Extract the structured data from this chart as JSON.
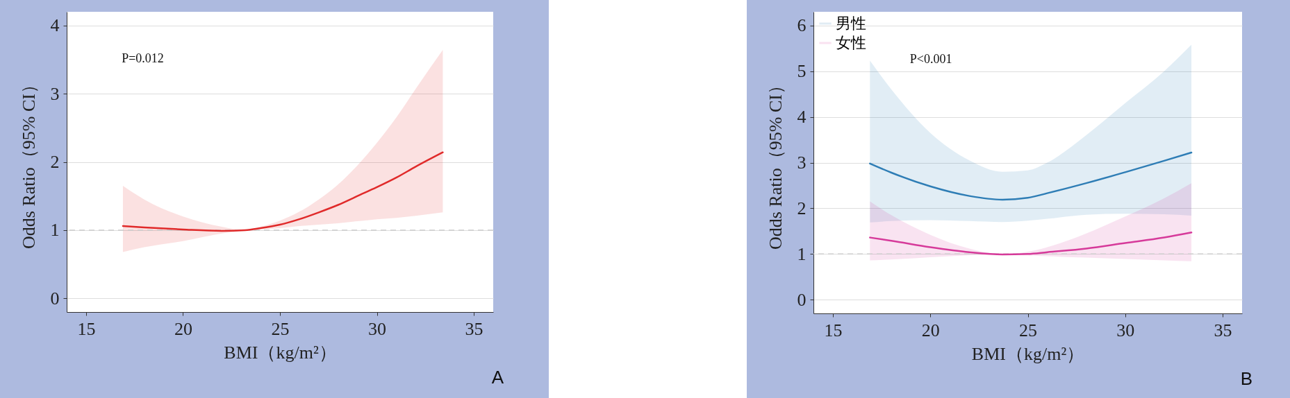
{
  "chart_data": [
    {
      "type": "line",
      "xlabel": "BMI（kg/m²）",
      "ylabel": "Odds Ratio（95% CI）",
      "xlim": [
        14,
        36
      ],
      "ylim": [
        -0.2,
        4.2
      ],
      "xticks": [
        15,
        20,
        25,
        30,
        35
      ],
      "yticks": [
        0,
        1,
        2,
        3,
        4
      ],
      "grid": "y",
      "legend": false,
      "series": [
        {
          "color": "#e02a2a",
          "x": [
            16.9,
            18,
            20,
            22,
            23.2,
            24,
            25,
            26,
            27,
            28,
            29,
            30,
            31,
            32,
            33.4
          ],
          "values": [
            1.06,
            1.04,
            1.01,
            0.99,
            1.0,
            1.03,
            1.08,
            1.16,
            1.26,
            1.37,
            1.5,
            1.63,
            1.77,
            1.93,
            2.14
          ],
          "lower": [
            0.68,
            0.75,
            0.84,
            0.95,
            1.0,
            1.01,
            1.03,
            1.06,
            1.08,
            1.1,
            1.13,
            1.16,
            1.18,
            1.21,
            1.26
          ],
          "upper": [
            1.65,
            1.45,
            1.2,
            1.05,
            1.0,
            1.05,
            1.14,
            1.27,
            1.45,
            1.67,
            1.95,
            2.28,
            2.65,
            3.07,
            3.64
          ]
        }
      ],
      "ref_lines": [
        {
          "axis": "y",
          "value": 1,
          "color": "#cccccc",
          "line_style": "dashed"
        }
      ],
      "annotations": [
        "P=0.012",
        "A"
      ]
    },
    {
      "type": "line",
      "xlabel": "BMI（kg/m²）",
      "ylabel": "Odds Ratio（95% CI）",
      "xlim": [
        14,
        36
      ],
      "ylim": [
        -0.3,
        6.3
      ],
      "xticks": [
        15,
        20,
        25,
        30,
        35
      ],
      "yticks": [
        0,
        1,
        2,
        3,
        4,
        5,
        6
      ],
      "grid": "y",
      "legend": "top left",
      "series": [
        {
          "name": "男性",
          "color": "#2e7db5",
          "x": [
            16.9,
            18,
            20,
            22,
            23.7,
            25,
            26,
            28,
            30,
            32,
            33.4
          ],
          "values": [
            2.98,
            2.78,
            2.48,
            2.27,
            2.19,
            2.23,
            2.33,
            2.55,
            2.79,
            3.04,
            3.22
          ],
          "lower": [
            1.69,
            1.72,
            1.74,
            1.72,
            1.7,
            1.73,
            1.77,
            1.86,
            1.88,
            1.87,
            1.84
          ],
          "upper": [
            5.23,
            4.6,
            3.65,
            3.05,
            2.8,
            2.83,
            3.0,
            3.6,
            4.3,
            5.0,
            5.58
          ]
        },
        {
          "name": "女性",
          "color": "#d63a9a",
          "x": [
            16.9,
            18,
            20,
            22,
            23.7,
            25,
            26,
            28,
            30,
            32,
            33.4
          ],
          "values": [
            1.36,
            1.29,
            1.15,
            1.04,
            0.99,
            1.0,
            1.04,
            1.12,
            1.24,
            1.36,
            1.47
          ],
          "lower": [
            0.86,
            0.88,
            0.93,
            0.97,
            0.99,
            0.97,
            0.95,
            0.92,
            0.89,
            0.86,
            0.84
          ],
          "upper": [
            2.15,
            1.85,
            1.42,
            1.12,
            1.0,
            1.05,
            1.15,
            1.45,
            1.82,
            2.22,
            2.55
          ]
        }
      ],
      "ref_lines": [
        {
          "axis": "y",
          "value": 1,
          "color": "#cccccc",
          "line_style": "dashed"
        }
      ],
      "annotations": [
        "P<0.001",
        "B"
      ]
    }
  ]
}
